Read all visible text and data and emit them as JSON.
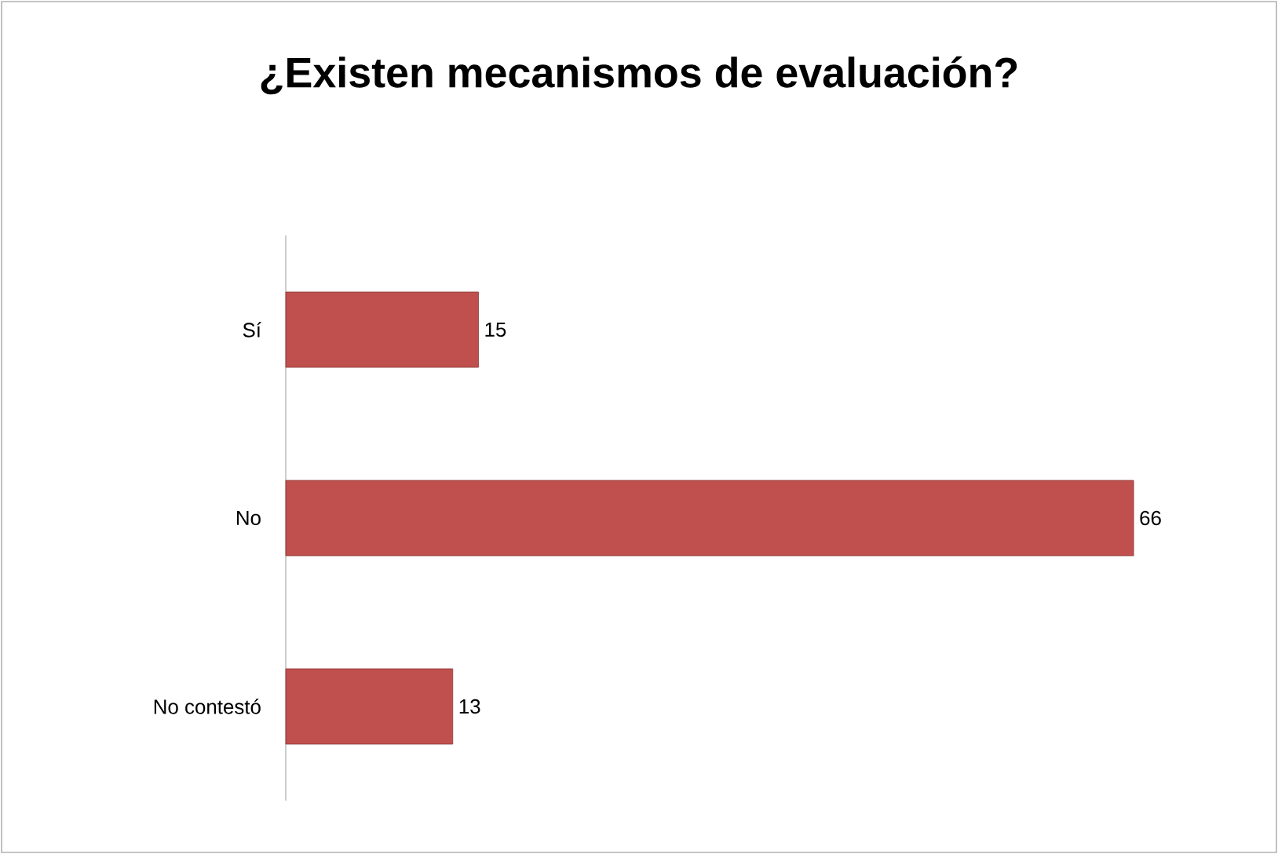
{
  "chart_data": {
    "type": "bar",
    "orientation": "horizontal",
    "title": "¿Existen mecanismos de evaluación?",
    "categories": [
      "Sí",
      "No",
      "No contestó"
    ],
    "values": [
      15,
      66,
      13
    ],
    "color": "#c0504d",
    "data_labels": true
  }
}
